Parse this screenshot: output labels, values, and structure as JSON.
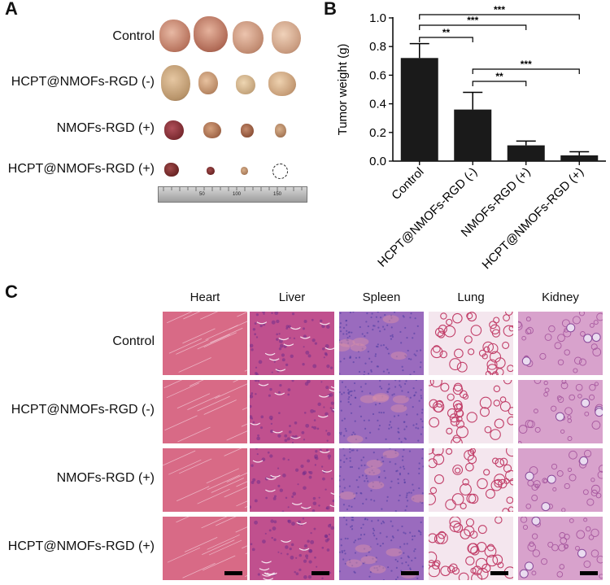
{
  "panels": {
    "a": "A",
    "b": "B",
    "c": "C"
  },
  "panel_a": {
    "rows": [
      "Control",
      "HCPT@NMOFs-RGD (-)",
      "NMOFs-RGD (+)",
      "HCPT@NMOFs-RGD (+)"
    ],
    "ruler_ticks": [
      "50",
      "100",
      "150"
    ]
  },
  "chart_data": {
    "type": "bar",
    "categories": [
      "Control",
      "HCPT@NMOFs-RGD (-)",
      "NMOFs-RGD (+)",
      "HCPT@NMOFs-RGD (+)"
    ],
    "values": [
      0.72,
      0.36,
      0.11,
      0.04
    ],
    "errors": [
      0.1,
      0.12,
      0.03,
      0.025
    ],
    "ylabel": "Tumor weight (g)",
    "ylim": [
      0,
      1.0
    ],
    "yticks": [
      "0.0",
      "0.2",
      "0.4",
      "0.6",
      "0.8",
      "1.0"
    ],
    "significance": [
      {
        "from": 0,
        "to": 1,
        "label": "**"
      },
      {
        "from": 0,
        "to": 2,
        "label": "***"
      },
      {
        "from": 0,
        "to": 3,
        "label": "***"
      },
      {
        "from": 1,
        "to": 2,
        "label": "**"
      },
      {
        "from": 1,
        "to": 3,
        "label": "***"
      }
    ],
    "bar_color": "#1a1a1a"
  },
  "panel_c": {
    "columns": [
      "Heart",
      "Liver",
      "Spleen",
      "Lung",
      "Kidney"
    ],
    "rows": [
      "Control",
      "HCPT@NMOFs-RGD (-)",
      "NMOFs-RGD (+)",
      "HCPT@NMOFs-RGD (+)"
    ],
    "colors": {
      "heart": "#d86a86",
      "liver": "#c0508e",
      "spleen": "#9a6bbe",
      "lung": "#f4e6ee",
      "kidney": "#d8a2cc"
    }
  }
}
